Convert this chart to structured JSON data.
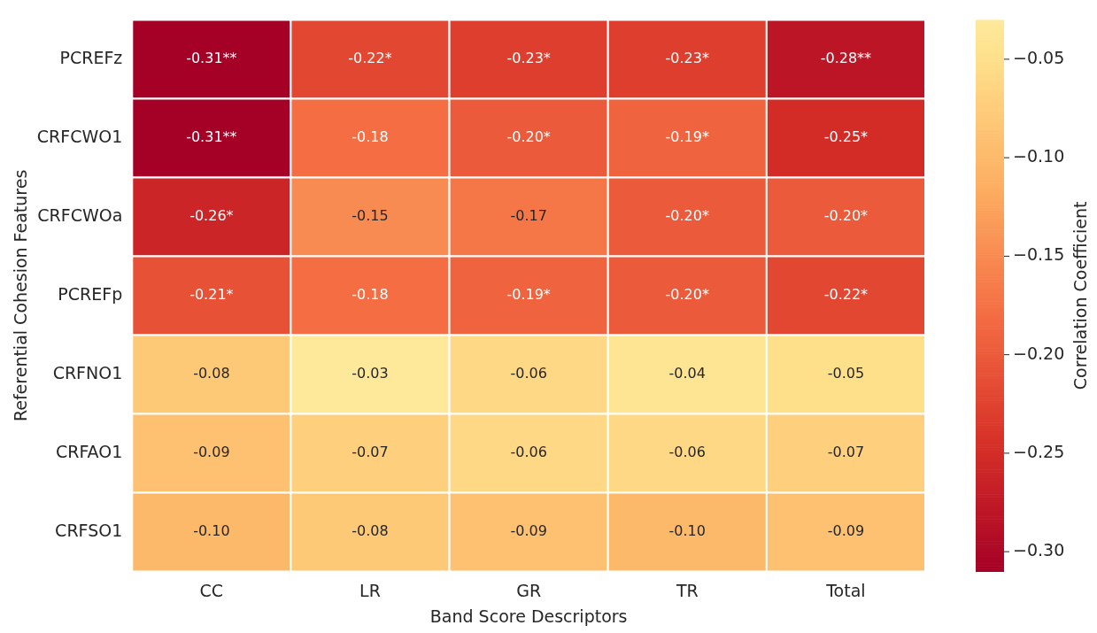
{
  "chart_data": {
    "type": "heatmap",
    "xlabel": "Band Score Descriptors",
    "ylabel": "Referential Cohesion Features",
    "clabel": "Correlation Coefficient",
    "categories": [
      "CC",
      "LR",
      "GR",
      "TR",
      "Total"
    ],
    "y_categories": [
      "PCREFz",
      "CRFCWO1",
      "CRFCWOa",
      "PCREFp",
      "CRFNO1",
      "CRFAO1",
      "CRFSO1"
    ],
    "cells": [
      [
        -0.31,
        -0.22,
        -0.23,
        -0.23,
        -0.28
      ],
      [
        -0.31,
        -0.18,
        -0.2,
        -0.19,
        -0.25
      ],
      [
        -0.26,
        -0.15,
        -0.17,
        -0.2,
        -0.2
      ],
      [
        -0.21,
        -0.18,
        -0.19,
        -0.2,
        -0.22
      ],
      [
        -0.08,
        -0.03,
        -0.06,
        -0.04,
        -0.05
      ],
      [
        -0.09,
        -0.07,
        -0.06,
        -0.06,
        -0.07
      ],
      [
        -0.1,
        -0.08,
        -0.09,
        -0.1,
        -0.09
      ]
    ],
    "cell_labels": [
      [
        "-0.31**",
        "-0.22*",
        "-0.23*",
        "-0.23*",
        "-0.28**"
      ],
      [
        "-0.31**",
        "-0.18",
        "-0.20*",
        "-0.19*",
        "-0.25*"
      ],
      [
        "-0.26*",
        "-0.15",
        "-0.17",
        "-0.20*",
        "-0.20*"
      ],
      [
        "-0.21*",
        "-0.18",
        "-0.19*",
        "-0.20*",
        "-0.22*"
      ],
      [
        "-0.08",
        "-0.03",
        "-0.06",
        "-0.04",
        "-0.05"
      ],
      [
        "-0.09",
        "-0.07",
        "-0.06",
        "-0.06",
        "-0.07"
      ],
      [
        "-0.10",
        "-0.08",
        "-0.09",
        "-0.10",
        "-0.09"
      ]
    ],
    "clim": [
      -0.31,
      -0.03
    ],
    "cticks": [
      {
        "value": -0.05,
        "label": "−0.05"
      },
      {
        "value": -0.1,
        "label": "−0.10"
      },
      {
        "value": -0.15,
        "label": "−0.15"
      },
      {
        "value": -0.2,
        "label": "−0.20"
      },
      {
        "value": -0.25,
        "label": "−0.25"
      },
      {
        "value": -0.3,
        "label": "−0.30"
      }
    ]
  }
}
